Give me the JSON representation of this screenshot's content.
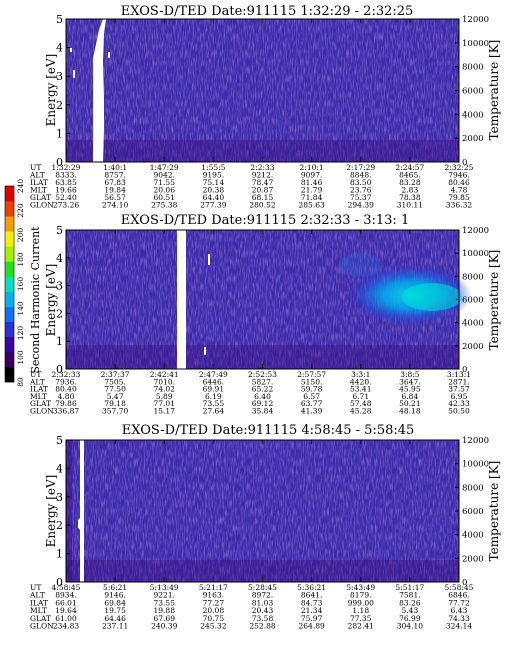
{
  "y_label": "Energy [eV]",
  "y2_label": "Temperature [K]",
  "colorbar": {
    "label": "Second Harmonic Current",
    "ticks": [
      80,
      100,
      120,
      140,
      160,
      180,
      200,
      220,
      240
    ],
    "colors": [
      "#000000",
      "#3a0062",
      "#3c00a8",
      "#3030d8",
      "#1070f0",
      "#00b0f0",
      "#00e0c0",
      "#20e020",
      "#a0f000",
      "#f0f000",
      "#f0a000",
      "#f04000",
      "#e00000"
    ]
  },
  "meta_labels": [
    "UT",
    "ALT",
    "ILAT",
    "MLT",
    "GLAT",
    "GLON"
  ],
  "chart_data": [
    {
      "type": "heatmap",
      "title": "EXOS-D/TED   Date:911115  1:32:29 - 2:32:25",
      "ylim": [
        0,
        5
      ],
      "yticks": [
        0,
        1,
        2,
        3,
        4,
        5
      ],
      "y2lim": [
        0,
        12000
      ],
      "y2ticks": [
        0,
        2000,
        4000,
        6000,
        8000,
        10000,
        12000
      ],
      "x_columns": [
        [
          "1:32:29",
          "8333.",
          "63.85",
          "19.66",
          "52.40",
          "273.26"
        ],
        [
          "1:40:1",
          "8757.",
          "67.83",
          "19.84",
          "56.57",
          "274.10"
        ],
        [
          "1:47:29",
          "9042.",
          "71.55",
          "20.06",
          "60.51",
          "275.38"
        ],
        [
          "1:55:5",
          "9195.",
          "75.14",
          "20.38",
          "64.40",
          "277.39"
        ],
        [
          "2:2:33",
          "9212.",
          "78.47",
          "20.87",
          "68.15",
          "280.52"
        ],
        [
          "2:10:1",
          "9097.",
          "81.46",
          "21.79",
          "71.84",
          "285.63"
        ],
        [
          "2:17:29",
          "8848.",
          "83.50",
          "23.76",
          "75.37",
          "294.39"
        ],
        [
          "2:24:57",
          "8465.",
          "83.28",
          "2.83",
          "78.38",
          "310.11"
        ],
        [
          "2:32:25",
          "7946.",
          "80.46",
          "4.78",
          "79.85",
          "336.32"
        ]
      ]
    },
    {
      "type": "heatmap",
      "title": "EXOS-D/TED   Date:911115  2:32:33 - 3:13: 1",
      "ylim": [
        0,
        5
      ],
      "yticks": [
        0,
        1,
        2,
        3,
        4,
        5
      ],
      "y2lim": [
        0,
        12000
      ],
      "y2ticks": [
        0,
        2000,
        4000,
        6000,
        8000,
        10000,
        12000
      ],
      "x_columns": [
        [
          "2:32:33",
          "7936.",
          "80.40",
          "4.80",
          "79.86",
          "336.87"
        ],
        [
          "2:37:37",
          "7505.",
          "77.50",
          "5.47",
          "79.18",
          "357.70"
        ],
        [
          "2:42:41",
          "7010.",
          "74.02",
          "5.89",
          "77.01",
          "15.17"
        ],
        [
          "2:47:49",
          "6446.",
          "69.91",
          "6.19",
          "73.55",
          "27.64"
        ],
        [
          "2:52:53",
          "5827.",
          "65.22",
          "6.40",
          "69.12",
          "35.84"
        ],
        [
          "2:57:57",
          "5150.",
          "59.78",
          "6.57",
          "63.77",
          "41.39"
        ],
        [
          "3:3:1",
          "4420.",
          "53.41",
          "6.71",
          "57.48",
          "45.28"
        ],
        [
          "3:8:5",
          "3647.",
          "45.95",
          "6.84",
          "50.21",
          "48.18"
        ],
        [
          "3:13:1",
          "2871.",
          "37.57",
          "6.95",
          "42.33",
          "50.50"
        ]
      ]
    },
    {
      "type": "heatmap",
      "title": "EXOS-D/TED   Date:911115  4:58:45 - 5:58:45",
      "ylim": [
        0,
        5
      ],
      "yticks": [
        0,
        1,
        2,
        3,
        4,
        5
      ],
      "y2lim": [
        0,
        12000
      ],
      "y2ticks": [
        0,
        2000,
        4000,
        6000,
        8000,
        10000,
        12000
      ],
      "x_columns": [
        [
          "4:58:45",
          "8934.",
          "66.01",
          "19.64",
          "61.00",
          "234.83"
        ],
        [
          "5:6:21",
          "9146.",
          "69.84",
          "19.75",
          "64.46",
          "237.11"
        ],
        [
          "5:13:49",
          "9221.",
          "73.55",
          "19.88",
          "67.69",
          "240.39"
        ],
        [
          "5:21:17",
          "9163.",
          "77.27",
          "20.08",
          "70.75",
          "245.32"
        ],
        [
          "5:28:45",
          "8972.",
          "81.03",
          "20.43",
          "73.58",
          "252.88"
        ],
        [
          "5:36:21",
          "8641.",
          "84.73",
          "21.34",
          "75.97",
          "264.89"
        ],
        [
          "5:43:49",
          "8179.",
          "999.00",
          "1.18",
          "77.35",
          "282.41"
        ],
        [
          "5:51:17",
          "7581.",
          "83.26",
          "5.43",
          "76.99",
          "304.10"
        ],
        [
          "5:58:45",
          "6846.",
          "77.72",
          "6.43",
          "74.33",
          "324.14"
        ]
      ]
    }
  ]
}
